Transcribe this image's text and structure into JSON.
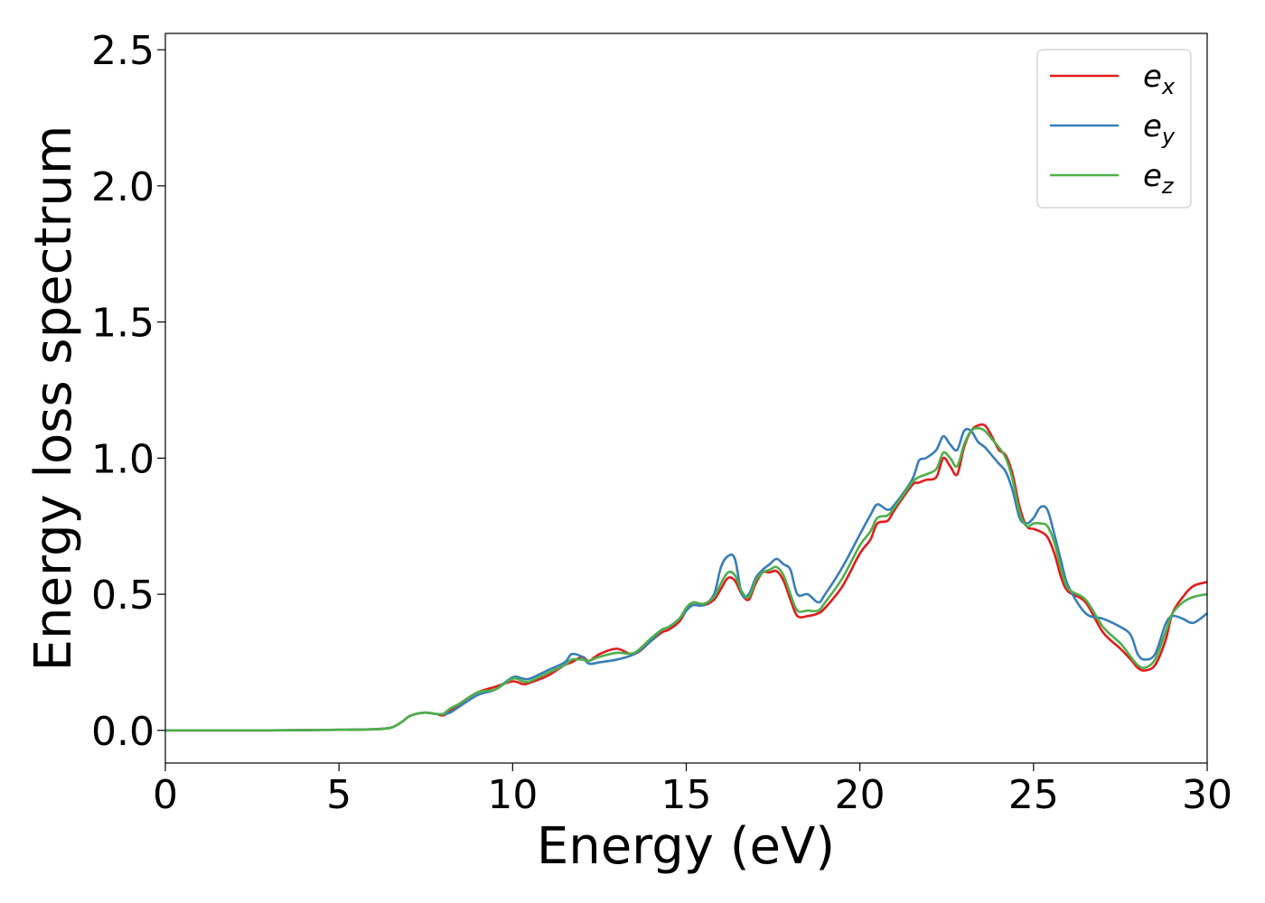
{
  "chart_data": {
    "type": "line",
    "title": "",
    "xlabel": "Energy (eV)",
    "ylabel": "Energy loss spectrum",
    "xlim": [
      0,
      30
    ],
    "ylim": [
      -0.12,
      2.56
    ],
    "xticks": [
      0,
      5,
      10,
      15,
      20,
      25,
      30
    ],
    "xtick_labels": [
      "0",
      "5",
      "10",
      "15",
      "20",
      "25",
      "30"
    ],
    "yticks": [
      0.0,
      0.5,
      1.0,
      1.5,
      2.0,
      2.5
    ],
    "ytick_labels": [
      "0.0",
      "0.5",
      "1.0",
      "1.5",
      "2.0",
      "2.5"
    ],
    "grid": false,
    "legend_position": "top-right",
    "x": [
      0,
      1,
      2,
      3,
      4,
      5,
      6,
      6.5,
      6.8,
      7,
      7.2,
      7.5,
      7.8,
      8,
      8.2,
      8.5,
      9,
      9.5,
      10,
      10.3,
      10.5,
      11,
      11.5,
      11.7,
      12,
      12.2,
      12.5,
      13,
      13.5,
      14,
      14.3,
      14.5,
      14.8,
      15,
      15.2,
      15.5,
      15.8,
      16,
      16.2,
      16.4,
      16.6,
      16.8,
      17,
      17.2,
      17.4,
      17.6,
      17.8,
      18,
      18.2,
      18.5,
      18.8,
      19,
      19.5,
      20,
      20.3,
      20.5,
      20.8,
      21,
      21.5,
      21.7,
      21.9,
      22.2,
      22.4,
      22.6,
      22.8,
      23,
      23.2,
      23.4,
      23.6,
      23.8,
      24,
      24.2,
      24.4,
      24.6,
      24.8,
      25,
      25.2,
      25.4,
      25.6,
      25.8,
      26,
      26.5,
      27,
      27.5,
      27.8,
      28,
      28.2,
      28.5,
      28.8,
      29,
      29.3,
      29.6,
      30
    ],
    "series": [
      {
        "name": "e_x",
        "label_base": "e",
        "label_sub": "x",
        "color": "#e41a1c",
        "values": [
          0,
          0,
          0,
          0,
          0.001,
          0.002,
          0.004,
          0.01,
          0.03,
          0.05,
          0.06,
          0.065,
          0.06,
          0.055,
          0.07,
          0.1,
          0.14,
          0.16,
          0.18,
          0.17,
          0.175,
          0.2,
          0.24,
          0.25,
          0.27,
          0.255,
          0.28,
          0.3,
          0.28,
          0.33,
          0.36,
          0.37,
          0.4,
          0.44,
          0.47,
          0.46,
          0.48,
          0.52,
          0.56,
          0.55,
          0.5,
          0.48,
          0.54,
          0.58,
          0.58,
          0.585,
          0.55,
          0.48,
          0.42,
          0.42,
          0.43,
          0.45,
          0.53,
          0.65,
          0.7,
          0.76,
          0.77,
          0.81,
          0.9,
          0.91,
          0.92,
          0.93,
          1.0,
          0.97,
          0.94,
          1.04,
          1.1,
          1.12,
          1.12,
          1.08,
          1.03,
          1.01,
          0.94,
          0.82,
          0.75,
          0.74,
          0.73,
          0.71,
          0.65,
          0.56,
          0.51,
          0.47,
          0.36,
          0.3,
          0.26,
          0.23,
          0.22,
          0.24,
          0.33,
          0.43,
          0.49,
          0.53,
          0.545
        ]
      },
      {
        "name": "e_y",
        "label_base": "e",
        "label_sub": "y",
        "color": "#377eb8",
        "values": [
          0,
          0,
          0,
          0,
          0.001,
          0.002,
          0.004,
          0.01,
          0.03,
          0.05,
          0.06,
          0.065,
          0.06,
          0.06,
          0.065,
          0.09,
          0.13,
          0.15,
          0.195,
          0.19,
          0.19,
          0.22,
          0.25,
          0.28,
          0.27,
          0.245,
          0.25,
          0.26,
          0.28,
          0.33,
          0.37,
          0.38,
          0.41,
          0.44,
          0.46,
          0.46,
          0.5,
          0.6,
          0.64,
          0.63,
          0.5,
          0.5,
          0.56,
          0.59,
          0.61,
          0.63,
          0.61,
          0.59,
          0.5,
          0.5,
          0.47,
          0.5,
          0.6,
          0.72,
          0.79,
          0.83,
          0.81,
          0.83,
          0.92,
          0.99,
          1.0,
          1.03,
          1.08,
          1.05,
          1.03,
          1.1,
          1.1,
          1.06,
          1.04,
          1.01,
          0.98,
          0.95,
          0.88,
          0.78,
          0.76,
          0.78,
          0.82,
          0.81,
          0.72,
          0.62,
          0.53,
          0.43,
          0.41,
          0.38,
          0.35,
          0.28,
          0.26,
          0.28,
          0.39,
          0.42,
          0.41,
          0.395,
          0.43
        ]
      },
      {
        "name": "e_z",
        "label_base": "e",
        "label_sub": "z",
        "color": "#4daf4a",
        "values": [
          0,
          0,
          0,
          0,
          0.001,
          0.002,
          0.004,
          0.01,
          0.03,
          0.05,
          0.06,
          0.065,
          0.06,
          0.06,
          0.08,
          0.1,
          0.14,
          0.15,
          0.19,
          0.18,
          0.18,
          0.21,
          0.24,
          0.26,
          0.26,
          0.255,
          0.27,
          0.285,
          0.285,
          0.34,
          0.37,
          0.38,
          0.41,
          0.45,
          0.47,
          0.465,
          0.49,
          0.54,
          0.58,
          0.57,
          0.51,
          0.49,
          0.55,
          0.58,
          0.59,
          0.6,
          0.57,
          0.5,
          0.44,
          0.44,
          0.44,
          0.47,
          0.56,
          0.68,
          0.73,
          0.78,
          0.79,
          0.82,
          0.91,
          0.93,
          0.94,
          0.96,
          1.02,
          1.0,
          0.97,
          1.05,
          1.1,
          1.11,
          1.1,
          1.07,
          1.04,
          1.0,
          0.92,
          0.8,
          0.75,
          0.76,
          0.76,
          0.75,
          0.69,
          0.59,
          0.52,
          0.48,
          0.38,
          0.32,
          0.27,
          0.24,
          0.23,
          0.26,
          0.36,
          0.43,
          0.47,
          0.49,
          0.5
        ]
      }
    ]
  }
}
